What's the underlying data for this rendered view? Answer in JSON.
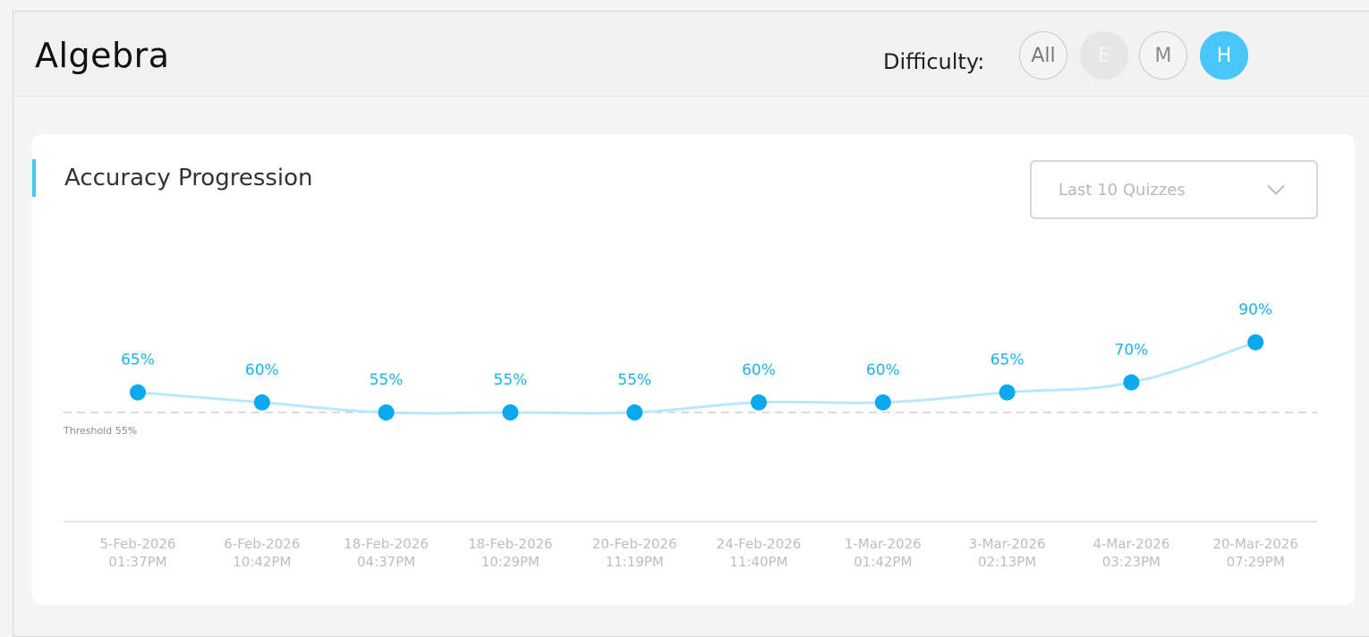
{
  "header": {
    "title": "Algebra",
    "difficulty_label": "Difficulty:",
    "difficulty_options": [
      "All",
      "E",
      "M",
      "H"
    ],
    "selected_difficulty": "H"
  },
  "card": {
    "title": "Accuracy Progression",
    "dropdown": {
      "selected": "Last 10 Quizzes"
    }
  },
  "colors": {
    "accent": "#48c6f7",
    "point": "#0aa8ec",
    "line": "#b9e7fb"
  },
  "chart_data": {
    "type": "line",
    "x": [
      [
        "5-Feb-2026",
        "01:37PM"
      ],
      [
        "6-Feb-2026",
        "10:42PM"
      ],
      [
        "18-Feb-2026",
        "04:37PM"
      ],
      [
        "18-Feb-2026",
        "10:29PM"
      ],
      [
        "20-Feb-2026",
        "11:19PM"
      ],
      [
        "24-Feb-2026",
        "11:40PM"
      ],
      [
        "1-Mar-2026",
        "01:42PM"
      ],
      [
        "3-Mar-2026",
        "02:13PM"
      ],
      [
        "4-Mar-2026",
        "03:23PM"
      ],
      [
        "20-Mar-2026",
        "07:29PM"
      ]
    ],
    "values": [
      65,
      60,
      55,
      55,
      55,
      60,
      60,
      65,
      70,
      90
    ],
    "data_labels": [
      "65%",
      "60%",
      "55%",
      "55%",
      "55%",
      "60%",
      "60%",
      "65%",
      "70%",
      "90%"
    ],
    "threshold": {
      "value": 55,
      "label": "Threshold 55%"
    },
    "ylim": [
      0,
      100
    ],
    "grid": false,
    "title": "",
    "xlabel": "",
    "ylabel": ""
  }
}
